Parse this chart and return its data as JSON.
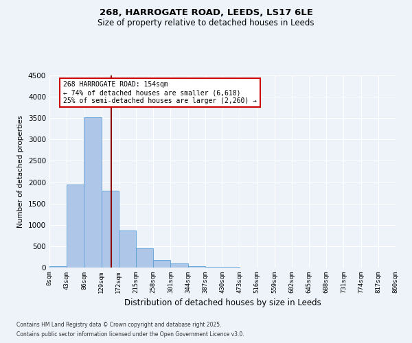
{
  "title": "268, HARROGATE ROAD, LEEDS, LS17 6LE",
  "subtitle": "Size of property relative to detached houses in Leeds",
  "xlabel": "Distribution of detached houses by size in Leeds",
  "ylabel": "Number of detached properties",
  "bin_labels": [
    "0sqm",
    "43sqm",
    "86sqm",
    "129sqm",
    "172sqm",
    "215sqm",
    "258sqm",
    "301sqm",
    "344sqm",
    "387sqm",
    "430sqm",
    "473sqm",
    "516sqm",
    "559sqm",
    "602sqm",
    "645sqm",
    "688sqm",
    "731sqm",
    "774sqm",
    "817sqm",
    "860sqm"
  ],
  "bar_values": [
    40,
    1950,
    3520,
    1800,
    870,
    450,
    175,
    90,
    40,
    20,
    10,
    0,
    0,
    0,
    0,
    0,
    0,
    0,
    0,
    0
  ],
  "bar_color": "#aec6e8",
  "bar_edge_color": "#5a9fd4",
  "vline_color": "#8b0000",
  "annotation_text": "268 HARROGATE ROAD: 154sqm\n← 74% of detached houses are smaller (6,618)\n25% of semi-detached houses are larger (2,260) →",
  "annotation_box_color": "#ffffff",
  "annotation_box_edge_color": "#cc0000",
  "ylim": [
    0,
    4500
  ],
  "yticks": [
    0,
    500,
    1000,
    1500,
    2000,
    2500,
    3000,
    3500,
    4000,
    4500
  ],
  "bg_color": "#eef3fa",
  "grid_color": "#ffffff",
  "footer_line1": "Contains HM Land Registry data © Crown copyright and database right 2025.",
  "footer_line2": "Contains public sector information licensed under the Open Government Licence v3.0."
}
